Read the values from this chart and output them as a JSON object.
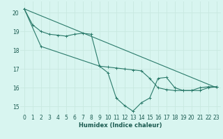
{
  "xlabel": "Humidex (Indice chaleur)",
  "ylabel": "",
  "background_color": "#d8f5f0",
  "grid_color": "#c8e8e0",
  "line_color": "#2a7a6a",
  "xlim": [
    -0.5,
    23.5
  ],
  "ylim": [
    14.6,
    20.6
  ],
  "yticks": [
    15,
    16,
    17,
    18,
    19,
    20
  ],
  "xticks": [
    0,
    1,
    2,
    3,
    4,
    5,
    6,
    7,
    8,
    9,
    10,
    11,
    12,
    13,
    14,
    15,
    16,
    17,
    18,
    19,
    20,
    21,
    22,
    23
  ],
  "line1_x": [
    0,
    1,
    2,
    3,
    4,
    5,
    6,
    7,
    8,
    9,
    10,
    11,
    12,
    13,
    14,
    15,
    16,
    17,
    18,
    19,
    20,
    21,
    22,
    23
  ],
  "line1_y": [
    20.2,
    19.35,
    19.0,
    18.85,
    18.8,
    18.75,
    18.85,
    18.9,
    18.85,
    17.15,
    17.1,
    17.05,
    17.0,
    16.95,
    16.9,
    16.5,
    16.0,
    15.9,
    15.85,
    15.85,
    15.85,
    16.0,
    16.05,
    16.05
  ],
  "line2_x": [
    0,
    2,
    9,
    10,
    11,
    12,
    13,
    14,
    15,
    16,
    17,
    18,
    19,
    20,
    21,
    22,
    23
  ],
  "line2_y": [
    20.2,
    18.2,
    17.15,
    16.8,
    15.45,
    15.05,
    14.75,
    15.2,
    15.45,
    16.5,
    16.55,
    16.0,
    15.85,
    15.85,
    15.85,
    16.0,
    16.05
  ],
  "line3_x": [
    0,
    23
  ],
  "line3_y": [
    20.2,
    16.0
  ]
}
